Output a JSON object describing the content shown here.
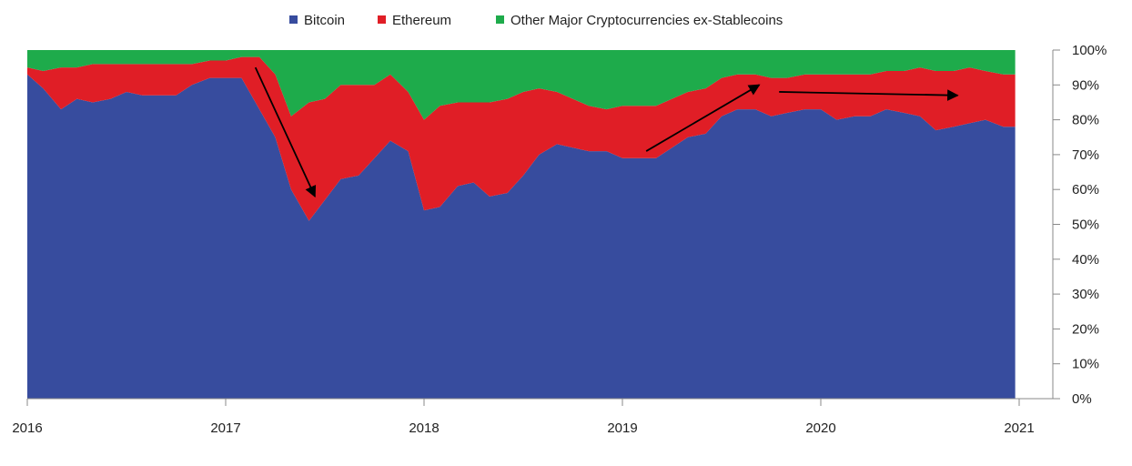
{
  "chart_data": {
    "type": "area",
    "stacked": true,
    "normalized": true,
    "title": "",
    "xlabel": "",
    "ylabel": "",
    "x_ticks": [
      "2016",
      "2017",
      "2018",
      "2019",
      "2020",
      "2021"
    ],
    "y_ticks": [
      "0%",
      "10%",
      "20%",
      "30%",
      "40%",
      "50%",
      "60%",
      "70%",
      "80%",
      "90%",
      "100%"
    ],
    "ylim": [
      0,
      100
    ],
    "xlim": [
      2016.0,
      2021.0
    ],
    "legend_position": "top-center",
    "grid": false,
    "x": [
      2016.0,
      2016.08,
      2016.17,
      2016.25,
      2016.33,
      2016.42,
      2016.5,
      2016.58,
      2016.67,
      2016.75,
      2016.83,
      2016.92,
      2017.0,
      2017.08,
      2017.17,
      2017.25,
      2017.33,
      2017.42,
      2017.5,
      2017.58,
      2017.67,
      2017.75,
      2017.83,
      2017.92,
      2018.0,
      2018.08,
      2018.17,
      2018.25,
      2018.33,
      2018.42,
      2018.5,
      2018.58,
      2018.67,
      2018.75,
      2018.83,
      2018.92,
      2019.0,
      2019.08,
      2019.17,
      2019.25,
      2019.33,
      2019.42,
      2019.5,
      2019.58,
      2019.67,
      2019.75,
      2019.83,
      2019.92,
      2020.0,
      2020.08,
      2020.17,
      2020.25,
      2020.33,
      2020.42,
      2020.5,
      2020.58,
      2020.67,
      2020.75,
      2020.83,
      2020.92
    ],
    "series": [
      {
        "name": "Bitcoin",
        "color": "#374c9e",
        "values": [
          93,
          89,
          83,
          86,
          85,
          86,
          88,
          87,
          87,
          87,
          90,
          92,
          92,
          92,
          83,
          75,
          60,
          51,
          57,
          63,
          64,
          69,
          74,
          71,
          54,
          55,
          61,
          62,
          58,
          59,
          64,
          70,
          73,
          72,
          71,
          71,
          69,
          69,
          69,
          72,
          75,
          76,
          81,
          83,
          83,
          81,
          82,
          83,
          83,
          80,
          81,
          81,
          83,
          82,
          81,
          77,
          78,
          79,
          80,
          78
        ]
      },
      {
        "name": "Ethereum",
        "color": "#e01e26",
        "values": [
          2,
          5,
          12,
          9,
          11,
          10,
          8,
          9,
          9,
          9,
          6,
          5,
          5,
          6,
          15,
          18,
          21,
          34,
          29,
          27,
          26,
          21,
          19,
          17,
          26,
          29,
          24,
          23,
          27,
          27,
          24,
          19,
          15,
          14,
          13,
          12,
          15,
          15,
          15,
          14,
          13,
          13,
          11,
          10,
          10,
          11,
          10,
          10,
          10,
          13,
          12,
          12,
          11,
          12,
          14,
          17,
          16,
          16,
          14,
          15
        ]
      },
      {
        "name": "Other Major Cryptocurrencies ex-Stablecoins",
        "color": "#1eab4b",
        "values": [
          5,
          6,
          5,
          5,
          4,
          4,
          4,
          4,
          4,
          4,
          4,
          3,
          3,
          2,
          2,
          7,
          19,
          15,
          14,
          10,
          10,
          10,
          7,
          12,
          20,
          16,
          15,
          15,
          15,
          14,
          12,
          11,
          12,
          14,
          16,
          17,
          16,
          16,
          16,
          14,
          12,
          11,
          8,
          7,
          7,
          8,
          8,
          7,
          7,
          7,
          7,
          7,
          6,
          6,
          5,
          6,
          6,
          5,
          6,
          7
        ]
      }
    ],
    "annotations": [
      {
        "type": "arrow",
        "from": [
          2017.15,
          95
        ],
        "to": [
          2017.45,
          58
        ]
      },
      {
        "type": "arrow",
        "from": [
          2019.12,
          71
        ],
        "to": [
          2019.69,
          90
        ]
      },
      {
        "type": "arrow",
        "from": [
          2019.79,
          88
        ],
        "to": [
          2020.69,
          87
        ]
      }
    ]
  }
}
